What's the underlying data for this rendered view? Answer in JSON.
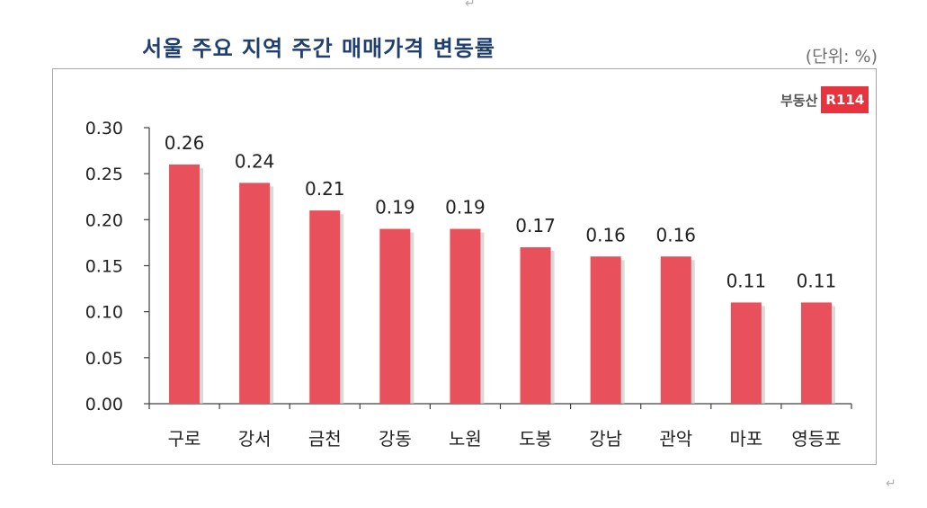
{
  "header": {
    "title": "서울 주요 지역 주간 매매가격 변동률",
    "unit": "(단위: %)"
  },
  "logo": {
    "text": "부동산",
    "badge": "R114"
  },
  "marks": {
    "return_top": "↵",
    "return_bottom": "↵"
  },
  "colors": {
    "bar": "#e8505b",
    "bar_shadow": "#c9c9c9",
    "axis": "#404040",
    "title": "#1f3f6e"
  },
  "chart_data": {
    "type": "bar",
    "categories": [
      "구로",
      "강서",
      "금천",
      "강동",
      "노원",
      "도봉",
      "강남",
      "관악",
      "마포",
      "영등포"
    ],
    "values": [
      0.26,
      0.24,
      0.21,
      0.19,
      0.19,
      0.17,
      0.16,
      0.16,
      0.11,
      0.11
    ],
    "data_labels": [
      "0.26",
      "0.24",
      "0.21",
      "0.19",
      "0.19",
      "0.17",
      "0.16",
      "0.16",
      "0.11",
      "0.11"
    ],
    "yticks": [
      "0.00",
      "0.05",
      "0.10",
      "0.15",
      "0.20",
      "0.25",
      "0.30"
    ],
    "ylim": [
      0,
      0.3
    ],
    "grid": false,
    "legend": "none"
  }
}
